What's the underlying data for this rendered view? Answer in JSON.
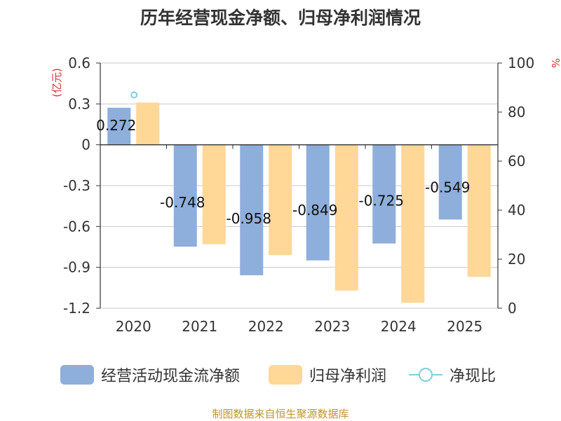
{
  "chart_data": {
    "type": "bar",
    "title": "历年经营现金净额、归母净利润情况",
    "categories": [
      "2020",
      "2021",
      "2022",
      "2023",
      "2024",
      "2025"
    ],
    "series": [
      {
        "name": "经营活动现金流净额",
        "axis": "left",
        "color": "#8eaedb",
        "values": [
          0.272,
          -0.748,
          -0.958,
          -0.849,
          -0.725,
          -0.549
        ],
        "labels": [
          "0.272",
          "-0.748",
          "-0.958",
          "-0.849",
          "-0.725",
          "-0.549"
        ]
      },
      {
        "name": "归母净利润",
        "axis": "left",
        "color": "#ffd796",
        "values": [
          0.31,
          -0.73,
          -0.81,
          -1.07,
          -1.16,
          -0.97
        ]
      },
      {
        "name": "净现比",
        "axis": "right",
        "type": "scatter",
        "color": "#7ecfdc",
        "values": [
          87,
          null,
          null,
          null,
          null,
          null
        ]
      }
    ],
    "left_axis": {
      "label": "(亿元)",
      "min": -1.2,
      "max": 0.6,
      "ticks": [
        0.6,
        0.3,
        0,
        -0.3,
        -0.6,
        -0.9,
        -1.2
      ],
      "tick_labels": [
        "0.6",
        "0.3",
        "0",
        "-0.3",
        "-0.6",
        "-0.9",
        "-1.2"
      ]
    },
    "right_axis": {
      "label": "%",
      "min": 0,
      "max": 100,
      "ticks": [
        100,
        80,
        60,
        40,
        20,
        0
      ],
      "tick_labels": [
        "100",
        "80",
        "60",
        "40",
        "20",
        "0"
      ]
    },
    "grid": true,
    "legend_position": "bottom"
  },
  "legend": {
    "item1": "经营活动现金流净额",
    "item2": "归母净利润",
    "item3": "净现比"
  },
  "source": "制图数据来自恒生聚源数据库"
}
